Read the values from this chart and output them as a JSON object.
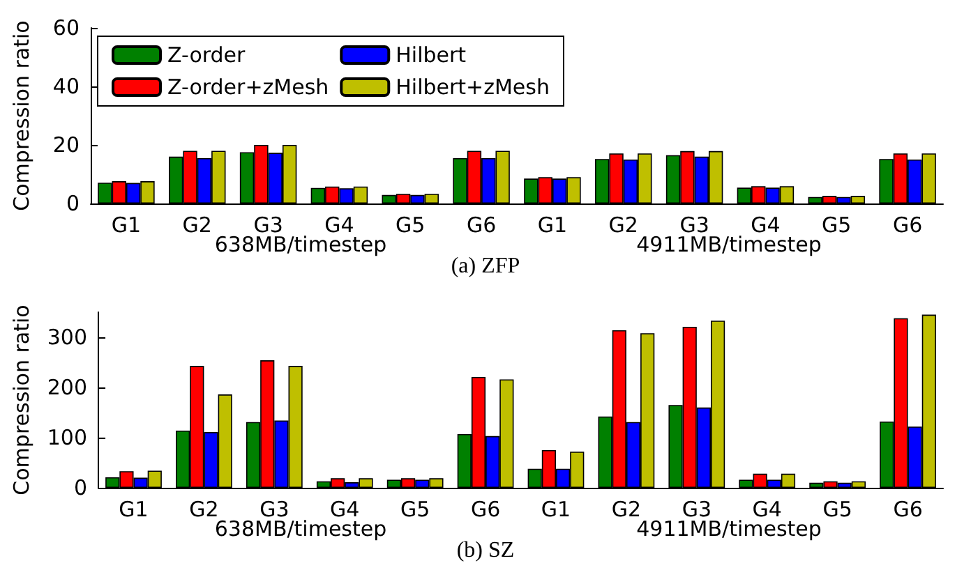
{
  "chart_data": [
    {
      "type": "bar",
      "title": "(a) ZFP",
      "ylabel": "Compression ratio",
      "categories": [
        "G1",
        "G2",
        "G3",
        "G4",
        "G5",
        "G6",
        "G1",
        "G2",
        "G3",
        "G4",
        "G5",
        "G6"
      ],
      "series": [
        {
          "name": "Z-order",
          "color": "#008000",
          "values": [
            7.1,
            16,
            17.5,
            5.3,
            2.9,
            15.5,
            8.5,
            15.2,
            16.5,
            5.4,
            2.2,
            15.2
          ]
        },
        {
          "name": "Z-order+zMesh",
          "color": "#ff0000",
          "values": [
            7.6,
            18,
            20,
            5.8,
            3.3,
            18,
            9,
            17.1,
            17.9,
            5.9,
            2.6,
            17.1
          ]
        },
        {
          "name": "Hilbert",
          "color": "#0000ff",
          "values": [
            7,
            15.5,
            17.3,
            5.2,
            2.9,
            15.5,
            8.5,
            15,
            16,
            5.4,
            2.2,
            15
          ]
        },
        {
          "name": "Hilbert+zMesh",
          "color": "#bfbf00",
          "values": [
            7.6,
            18,
            20,
            5.8,
            3.3,
            18,
            9,
            17.1,
            17.9,
            5.9,
            2.6,
            17.1
          ]
        }
      ],
      "ylim": [
        0,
        60
      ],
      "yticks": [
        0,
        20,
        40,
        60
      ],
      "grid": false,
      "legend": "top left",
      "annotations": [
        "638MB/timestep",
        "4911MB/timestep"
      ]
    },
    {
      "type": "bar",
      "title": "(b) SZ",
      "ylabel": "Compression ratio",
      "categories": [
        "G1",
        "G2",
        "G3",
        "G4",
        "G5",
        "G6",
        "G1",
        "G2",
        "G3",
        "G4",
        "G5",
        "G6"
      ],
      "series": [
        {
          "color": "#008000",
          "values": [
            21,
            114,
            131,
            13,
            16,
            107,
            38,
            142,
            165,
            16,
            10,
            132
          ]
        },
        {
          "color": "#ff0000",
          "values": [
            33,
            243,
            254,
            19,
            19,
            221,
            75,
            314,
            321,
            28,
            13,
            338
          ]
        },
        {
          "color": "#0000ff",
          "values": [
            20,
            111,
            134,
            11,
            16,
            103,
            38,
            131,
            160,
            16,
            10,
            122
          ]
        },
        {
          "color": "#bfbf00",
          "values": [
            34,
            186,
            243,
            19,
            19,
            216,
            72,
            308,
            333,
            28,
            13,
            345
          ]
        }
      ],
      "ylim": [
        0,
        350
      ],
      "yticks": [
        0,
        100,
        200,
        300
      ],
      "grid": false,
      "legend": false,
      "annotations": [
        "638MB/timestep",
        "4911MB/timestep"
      ]
    }
  ]
}
